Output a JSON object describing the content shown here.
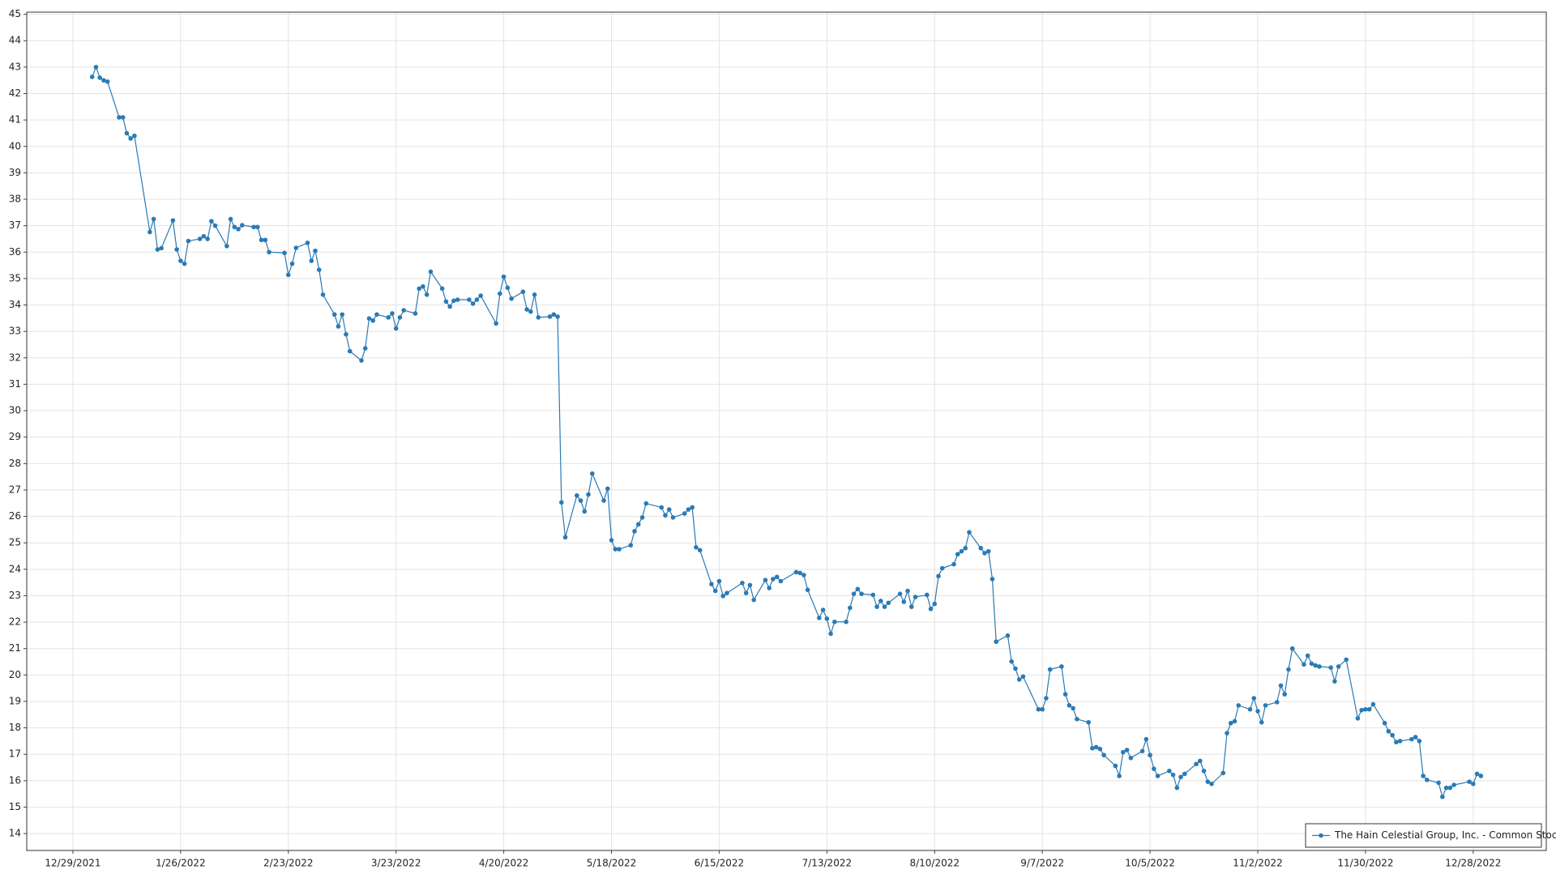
{
  "chart_data": {
    "type": "line",
    "series": [
      {
        "name": "The Hain Celestial Group, Inc. - Common Stock",
        "color": "#2a7ab5",
        "x": [
          "2022-01-03",
          "2022-01-04",
          "2022-01-05",
          "2022-01-06",
          "2022-01-07",
          "2022-01-10",
          "2022-01-11",
          "2022-01-12",
          "2022-01-13",
          "2022-01-14",
          "2022-01-18",
          "2022-01-19",
          "2022-01-20",
          "2022-01-21",
          "2022-01-24",
          "2022-01-25",
          "2022-01-26",
          "2022-01-27",
          "2022-01-28",
          "2022-01-31",
          "2022-02-01",
          "2022-02-02",
          "2022-02-03",
          "2022-02-04",
          "2022-02-07",
          "2022-02-08",
          "2022-02-09",
          "2022-02-10",
          "2022-02-11",
          "2022-02-14",
          "2022-02-15",
          "2022-02-16",
          "2022-02-17",
          "2022-02-18",
          "2022-02-22",
          "2022-02-23",
          "2022-02-24",
          "2022-02-25",
          "2022-02-28",
          "2022-03-01",
          "2022-03-02",
          "2022-03-03",
          "2022-03-04",
          "2022-03-07",
          "2022-03-08",
          "2022-03-09",
          "2022-03-10",
          "2022-03-11",
          "2022-03-14",
          "2022-03-15",
          "2022-03-16",
          "2022-03-17",
          "2022-03-18",
          "2022-03-21",
          "2022-03-22",
          "2022-03-23",
          "2022-03-24",
          "2022-03-25",
          "2022-03-28",
          "2022-03-29",
          "2022-03-30",
          "2022-03-31",
          "2022-04-01",
          "2022-04-04",
          "2022-04-05",
          "2022-04-06",
          "2022-04-07",
          "2022-04-08",
          "2022-04-11",
          "2022-04-12",
          "2022-04-13",
          "2022-04-14",
          "2022-04-18",
          "2022-04-19",
          "2022-04-20",
          "2022-04-21",
          "2022-04-22",
          "2022-04-25",
          "2022-04-26",
          "2022-04-27",
          "2022-04-28",
          "2022-04-29",
          "2022-05-02",
          "2022-05-03",
          "2022-05-04",
          "2022-05-05",
          "2022-05-06",
          "2022-05-09",
          "2022-05-10",
          "2022-05-11",
          "2022-05-12",
          "2022-05-13",
          "2022-05-16",
          "2022-05-17",
          "2022-05-18",
          "2022-05-19",
          "2022-05-20",
          "2022-05-23",
          "2022-05-24",
          "2022-05-25",
          "2022-05-26",
          "2022-05-27",
          "2022-05-31",
          "2022-06-01",
          "2022-06-02",
          "2022-06-03",
          "2022-06-06",
          "2022-06-07",
          "2022-06-08",
          "2022-06-09",
          "2022-06-10",
          "2022-06-13",
          "2022-06-14",
          "2022-06-15",
          "2022-06-16",
          "2022-06-17",
          "2022-06-21",
          "2022-06-22",
          "2022-06-23",
          "2022-06-24",
          "2022-06-27",
          "2022-06-28",
          "2022-06-29",
          "2022-06-30",
          "2022-07-01",
          "2022-07-05",
          "2022-07-06",
          "2022-07-07",
          "2022-07-08",
          "2022-07-11",
          "2022-07-12",
          "2022-07-13",
          "2022-07-14",
          "2022-07-15",
          "2022-07-18",
          "2022-07-19",
          "2022-07-20",
          "2022-07-21",
          "2022-07-22",
          "2022-07-25",
          "2022-07-26",
          "2022-07-27",
          "2022-07-28",
          "2022-07-29",
          "2022-08-01",
          "2022-08-02",
          "2022-08-03",
          "2022-08-04",
          "2022-08-05",
          "2022-08-08",
          "2022-08-09",
          "2022-08-10",
          "2022-08-11",
          "2022-08-12",
          "2022-08-15",
          "2022-08-16",
          "2022-08-17",
          "2022-08-18",
          "2022-08-19",
          "2022-08-22",
          "2022-08-23",
          "2022-08-24",
          "2022-08-25",
          "2022-08-26",
          "2022-08-29",
          "2022-08-30",
          "2022-08-31",
          "2022-09-01",
          "2022-09-02",
          "2022-09-06",
          "2022-09-07",
          "2022-09-08",
          "2022-09-09",
          "2022-09-12",
          "2022-09-13",
          "2022-09-14",
          "2022-09-15",
          "2022-09-16",
          "2022-09-19",
          "2022-09-20",
          "2022-09-21",
          "2022-09-22",
          "2022-09-23",
          "2022-09-26",
          "2022-09-27",
          "2022-09-28",
          "2022-09-29",
          "2022-09-30",
          "2022-10-03",
          "2022-10-04",
          "2022-10-05",
          "2022-10-06",
          "2022-10-07",
          "2022-10-10",
          "2022-10-11",
          "2022-10-12",
          "2022-10-13",
          "2022-10-14",
          "2022-10-17",
          "2022-10-18",
          "2022-10-19",
          "2022-10-20",
          "2022-10-21",
          "2022-10-24",
          "2022-10-25",
          "2022-10-26",
          "2022-10-27",
          "2022-10-28",
          "2022-10-31",
          "2022-11-01",
          "2022-11-02",
          "2022-11-03",
          "2022-11-04",
          "2022-11-07",
          "2022-11-08",
          "2022-11-09",
          "2022-11-10",
          "2022-11-11",
          "2022-11-14",
          "2022-11-15",
          "2022-11-16",
          "2022-11-17",
          "2022-11-18",
          "2022-11-21",
          "2022-11-22",
          "2022-11-23",
          "2022-11-25",
          "2022-11-28",
          "2022-11-29",
          "2022-11-30",
          "2022-12-01",
          "2022-12-02",
          "2022-12-05",
          "2022-12-06",
          "2022-12-07",
          "2022-12-08",
          "2022-12-09",
          "2022-12-12",
          "2022-12-13",
          "2022-12-14",
          "2022-12-15",
          "2022-12-16",
          "2022-12-19",
          "2022-12-20",
          "2022-12-21",
          "2022-12-22",
          "2022-12-23",
          "2022-12-27",
          "2022-12-28",
          "2022-12-29",
          "2022-12-30"
        ],
        "values": [
          42.63,
          43.0,
          42.6,
          42.5,
          42.45,
          41.1,
          41.1,
          40.5,
          40.3,
          40.4,
          36.76,
          37.25,
          36.1,
          36.15,
          37.2,
          36.1,
          35.67,
          35.56,
          36.42,
          36.5,
          36.6,
          36.5,
          37.17,
          37.0,
          36.23,
          37.25,
          36.95,
          36.87,
          37.02,
          36.95,
          36.95,
          36.46,
          36.46,
          36.0,
          35.97,
          35.14,
          35.56,
          36.16,
          36.35,
          35.67,
          36.05,
          35.33,
          34.39,
          33.64,
          33.19,
          33.64,
          32.89,
          32.25,
          31.9,
          32.36,
          33.49,
          33.41,
          33.64,
          33.53,
          33.68,
          33.11,
          33.53,
          33.8,
          33.68,
          34.62,
          34.7,
          34.39,
          35.26,
          34.62,
          34.13,
          33.94,
          34.16,
          34.2,
          34.2,
          34.05,
          34.2,
          34.35,
          33.3,
          34.43,
          35.07,
          34.65,
          34.24,
          34.5,
          33.83,
          33.75,
          34.39,
          33.53,
          33.56,
          33.64,
          33.56,
          26.53,
          25.21,
          26.79,
          26.6,
          26.19,
          26.83,
          27.62,
          26.6,
          27.05,
          25.1,
          24.76,
          24.76,
          24.91,
          25.44,
          25.7,
          25.96,
          26.49,
          26.34,
          26.04,
          26.26,
          25.96,
          26.11,
          26.26,
          26.34,
          24.83,
          24.72,
          23.44,
          23.18,
          23.55,
          22.99,
          23.1,
          23.48,
          23.1,
          23.4,
          22.84,
          23.59,
          23.29,
          23.63,
          23.71,
          23.55,
          23.89,
          23.86,
          23.78,
          23.22,
          22.16,
          22.46,
          22.13,
          21.56,
          22.01,
          22.01,
          22.54,
          23.07,
          23.25,
          23.07,
          23.03,
          22.58,
          22.8,
          22.58,
          22.73,
          23.07,
          22.77,
          23.18,
          22.58,
          22.95,
          23.03,
          22.5,
          22.69,
          23.74,
          24.04,
          24.19,
          24.57,
          24.68,
          24.8,
          25.4,
          24.8,
          24.61,
          24.68,
          23.63,
          21.26,
          21.49,
          20.51,
          20.24,
          19.83,
          19.94,
          18.7,
          18.7,
          19.12,
          20.21,
          20.32,
          19.27,
          18.85,
          18.74,
          18.33,
          18.21,
          17.23,
          17.27,
          17.2,
          16.97,
          16.56,
          16.18,
          17.08,
          17.16,
          16.86,
          17.12,
          17.57,
          16.97,
          16.45,
          16.18,
          16.37,
          16.22,
          15.73,
          16.14,
          16.26,
          16.63,
          16.75,
          16.37,
          15.96,
          15.88,
          16.29,
          17.8,
          18.18,
          18.25,
          18.85,
          18.7,
          19.12,
          18.63,
          18.21,
          18.85,
          18.97,
          19.6,
          19.27,
          20.21,
          21.0,
          20.4,
          20.73,
          20.43,
          20.36,
          20.32,
          20.28,
          19.76,
          20.32,
          20.58,
          18.36,
          18.67,
          18.7,
          18.7,
          18.89,
          18.18,
          17.87,
          17.72,
          17.46,
          17.5,
          17.57,
          17.65,
          17.5,
          16.18,
          16.03,
          15.92,
          15.39,
          15.73,
          15.73,
          15.84,
          15.96,
          15.88,
          16.26,
          16.18
        ]
      }
    ],
    "xlim": [
      "2021-12-17",
      "2023-01-16"
    ],
    "xticks": [
      {
        "value": "2021-12-29",
        "label": "12/29/2021"
      },
      {
        "value": "2022-01-26",
        "label": "1/26/2022"
      },
      {
        "value": "2022-02-23",
        "label": "2/23/2022"
      },
      {
        "value": "2022-03-23",
        "label": "3/23/2022"
      },
      {
        "value": "2022-04-20",
        "label": "4/20/2022"
      },
      {
        "value": "2022-05-18",
        "label": "5/18/2022"
      },
      {
        "value": "2022-06-15",
        "label": "6/15/2022"
      },
      {
        "value": "2022-07-13",
        "label": "7/13/2022"
      },
      {
        "value": "2022-08-10",
        "label": "8/10/2022"
      },
      {
        "value": "2022-09-07",
        "label": "9/7/2022"
      },
      {
        "value": "2022-10-05",
        "label": "10/5/2022"
      },
      {
        "value": "2022-11-02",
        "label": "11/2/2022"
      },
      {
        "value": "2022-11-30",
        "label": "11/30/2022"
      },
      {
        "value": "2022-12-28",
        "label": "12/28/2022"
      }
    ],
    "ylim": [
      13.36,
      45.08
    ],
    "yticks": [
      14,
      15,
      16,
      17,
      18,
      19,
      20,
      21,
      22,
      23,
      24,
      25,
      26,
      27,
      28,
      29,
      30,
      31,
      32,
      33,
      34,
      35,
      36,
      37,
      38,
      39,
      40,
      41,
      42,
      43,
      44,
      45
    ],
    "grid": true,
    "legend": "lower right"
  }
}
